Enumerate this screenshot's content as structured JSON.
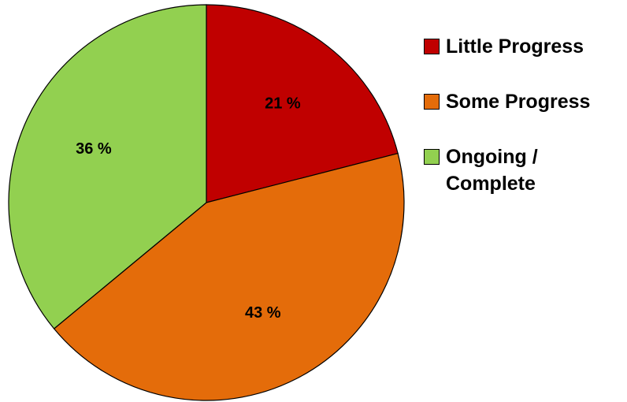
{
  "chart_data": {
    "type": "pie",
    "categories": [
      "Little Progress",
      "Some Progress",
      "Ongoing / Complete"
    ],
    "values": [
      21,
      43,
      36
    ],
    "value_labels": [
      "21 %",
      "43 %",
      "36 %"
    ],
    "colors": [
      "#c00000",
      "#e46c0a",
      "#92d050"
    ],
    "legend": "right"
  }
}
